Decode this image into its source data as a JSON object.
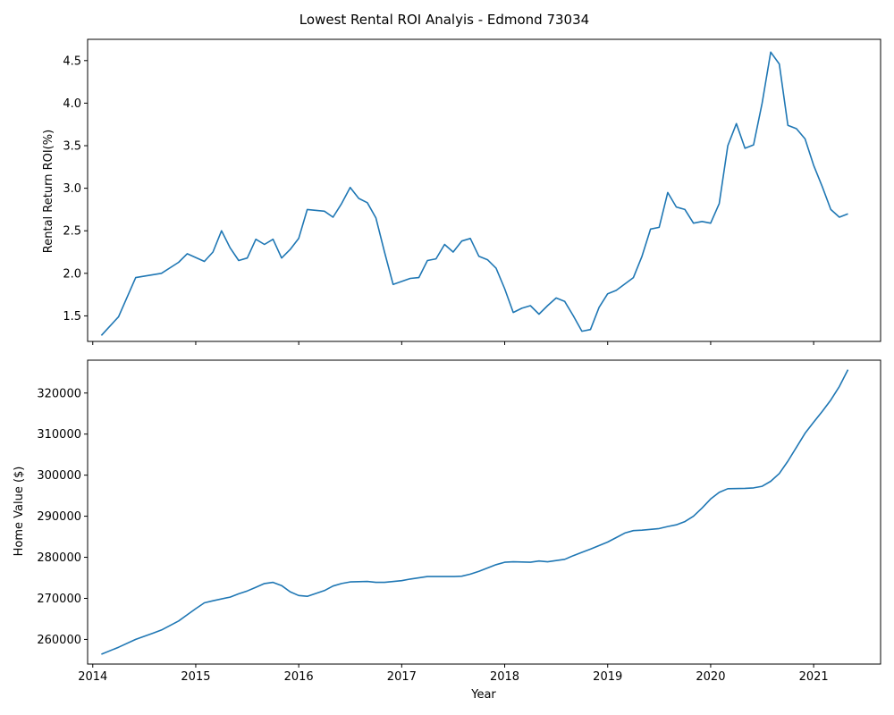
{
  "chart_data": {
    "type": "line",
    "title": "Lowest Rental ROI Analyis - Edmond 73034",
    "xlabel": "Year",
    "x_ticks": [
      "2014",
      "2015",
      "2016",
      "2017",
      "2018",
      "2019",
      "2020",
      "2021"
    ],
    "panels": [
      {
        "ylabel": "Rental Return ROI(%)",
        "ylim": [
          1.2,
          4.75
        ],
        "y_ticks": [
          "1.5",
          "2.0",
          "2.5",
          "3.0",
          "3.5",
          "4.0",
          "4.5"
        ],
        "series": [
          {
            "color": "#1f77b4",
            "points": [
              [
                "2014-02",
                1.27
              ],
              [
                "2014-04",
                1.49
              ],
              [
                "2014-06",
                1.95
              ],
              [
                "2014-09",
                2.0
              ],
              [
                "2014-11",
                2.13
              ],
              [
                "2014-12",
                2.23
              ],
              [
                "2015-02",
                2.14
              ],
              [
                "2015-03",
                2.25
              ],
              [
                "2015-04",
                2.5
              ],
              [
                "2015-05",
                2.3
              ],
              [
                "2015-06",
                2.15
              ],
              [
                "2015-07",
                2.18
              ],
              [
                "2015-08",
                2.4
              ],
              [
                "2015-09",
                2.34
              ],
              [
                "2015-10",
                2.4
              ],
              [
                "2015-11",
                2.18
              ],
              [
                "2015-12",
                2.28
              ],
              [
                "2016-01",
                2.41
              ],
              [
                "2016-02",
                2.75
              ],
              [
                "2016-04",
                2.73
              ],
              [
                "2016-05",
                2.66
              ],
              [
                "2016-06",
                2.82
              ],
              [
                "2016-07",
                3.01
              ],
              [
                "2016-08",
                2.88
              ],
              [
                "2016-09",
                2.83
              ],
              [
                "2016-10",
                2.65
              ],
              [
                "2016-11",
                2.25
              ],
              [
                "2016-12",
                1.87
              ],
              [
                "2017-02",
                1.94
              ],
              [
                "2017-03",
                1.95
              ],
              [
                "2017-04",
                2.15
              ],
              [
                "2017-05",
                2.17
              ],
              [
                "2017-06",
                2.34
              ],
              [
                "2017-07",
                2.25
              ],
              [
                "2017-08",
                2.38
              ],
              [
                "2017-09",
                2.41
              ],
              [
                "2017-10",
                2.2
              ],
              [
                "2017-11",
                2.16
              ],
              [
                "2017-12",
                2.06
              ],
              [
                "2018-01",
                1.82
              ],
              [
                "2018-02",
                1.54
              ],
              [
                "2018-03",
                1.59
              ],
              [
                "2018-04",
                1.62
              ],
              [
                "2018-05",
                1.52
              ],
              [
                "2018-06",
                1.62
              ],
              [
                "2018-07",
                1.71
              ],
              [
                "2018-08",
                1.67
              ],
              [
                "2018-09",
                1.5
              ],
              [
                "2018-10",
                1.32
              ],
              [
                "2018-11",
                1.34
              ],
              [
                "2018-12",
                1.6
              ],
              [
                "2019-01",
                1.76
              ],
              [
                "2019-02",
                1.8
              ],
              [
                "2019-04",
                1.95
              ],
              [
                "2019-05",
                2.2
              ],
              [
                "2019-06",
                2.52
              ],
              [
                "2019-07",
                2.54
              ],
              [
                "2019-08",
                2.95
              ],
              [
                "2019-09",
                2.78
              ],
              [
                "2019-10",
                2.75
              ],
              [
                "2019-11",
                2.59
              ],
              [
                "2019-12",
                2.61
              ],
              [
                "2020-01",
                2.59
              ],
              [
                "2020-02",
                2.82
              ],
              [
                "2020-03",
                3.5
              ],
              [
                "2020-04",
                3.76
              ],
              [
                "2020-05",
                3.47
              ],
              [
                "2020-06",
                3.51
              ],
              [
                "2020-07",
                4.0
              ],
              [
                "2020-08",
                4.6
              ],
              [
                "2020-09",
                4.46
              ],
              [
                "2020-10",
                3.74
              ],
              [
                "2020-11",
                3.7
              ],
              [
                "2020-12",
                3.58
              ],
              [
                "2021-01",
                3.27
              ],
              [
                "2021-02",
                3.02
              ],
              [
                "2021-03",
                2.75
              ],
              [
                "2021-04",
                2.66
              ],
              [
                "2021-05",
                2.7
              ]
            ]
          }
        ]
      },
      {
        "ylabel": "Home Value ($)",
        "ylim": [
          254000,
          328000
        ],
        "y_ticks": [
          "260000",
          "270000",
          "280000",
          "290000",
          "300000",
          "310000",
          "320000"
        ],
        "series": [
          {
            "color": "#1f77b4",
            "points": [
              [
                "2014-02",
                256400
              ],
              [
                "2014-04",
                258100
              ],
              [
                "2014-06",
                260000
              ],
              [
                "2014-08",
                261500
              ],
              [
                "2014-09",
                262300
              ],
              [
                "2014-11",
                264500
              ],
              [
                "2014-12",
                266000
              ],
              [
                "2015-01",
                267500
              ],
              [
                "2015-02",
                268900
              ],
              [
                "2015-03",
                269400
              ],
              [
                "2015-05",
                270300
              ],
              [
                "2015-06",
                271100
              ],
              [
                "2015-07",
                271800
              ],
              [
                "2015-08",
                272700
              ],
              [
                "2015-09",
                273600
              ],
              [
                "2015-10",
                273900
              ],
              [
                "2015-11",
                273100
              ],
              [
                "2015-12",
                271600
              ],
              [
                "2016-01",
                270700
              ],
              [
                "2016-02",
                270500
              ],
              [
                "2016-04",
                271900
              ],
              [
                "2016-05",
                273000
              ],
              [
                "2016-06",
                273600
              ],
              [
                "2016-07",
                274000
              ],
              [
                "2016-09",
                274100
              ],
              [
                "2016-10",
                273900
              ],
              [
                "2016-11",
                273900
              ],
              [
                "2017-01",
                274300
              ],
              [
                "2017-02",
                274700
              ],
              [
                "2017-04",
                275300
              ],
              [
                "2017-05",
                275300
              ],
              [
                "2017-07",
                275300
              ],
              [
                "2017-08",
                275400
              ],
              [
                "2017-09",
                275900
              ],
              [
                "2017-10",
                276600
              ],
              [
                "2017-11",
                277400
              ],
              [
                "2017-12",
                278200
              ],
              [
                "2018-01",
                278800
              ],
              [
                "2018-02",
                278900
              ],
              [
                "2018-04",
                278800
              ],
              [
                "2018-05",
                279100
              ],
              [
                "2018-06",
                278900
              ],
              [
                "2018-08",
                279500
              ],
              [
                "2018-09",
                280400
              ],
              [
                "2018-10",
                281200
              ],
              [
                "2018-11",
                282000
              ],
              [
                "2019-01",
                283700
              ],
              [
                "2019-02",
                284800
              ],
              [
                "2019-03",
                285900
              ],
              [
                "2019-04",
                286500
              ],
              [
                "2019-05",
                286600
              ],
              [
                "2019-07",
                287000
              ],
              [
                "2019-08",
                287500
              ],
              [
                "2019-09",
                287900
              ],
              [
                "2019-10",
                288700
              ],
              [
                "2019-11",
                290000
              ],
              [
                "2019-12",
                292000
              ],
              [
                "2020-01",
                294200
              ],
              [
                "2020-02",
                295800
              ],
              [
                "2020-03",
                296700
              ],
              [
                "2020-05",
                296800
              ],
              [
                "2020-06",
                296900
              ],
              [
                "2020-07",
                297300
              ],
              [
                "2020-08",
                298500
              ],
              [
                "2020-09",
                300400
              ],
              [
                "2020-10",
                303400
              ],
              [
                "2020-11",
                306800
              ],
              [
                "2020-12",
                310200
              ],
              [
                "2021-01",
                312900
              ],
              [
                "2021-02",
                315500
              ],
              [
                "2021-03",
                318300
              ],
              [
                "2021-04",
                321600
              ],
              [
                "2021-05",
                325700
              ]
            ]
          }
        ]
      }
    ]
  }
}
